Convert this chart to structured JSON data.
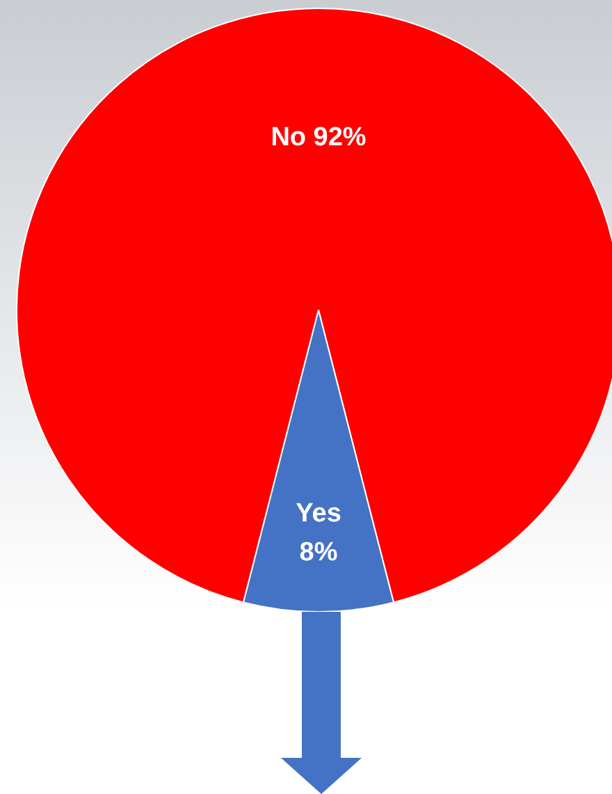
{
  "chart_data": {
    "type": "pie",
    "categories": [
      "No",
      "Yes"
    ],
    "values": [
      92,
      8
    ],
    "colors": [
      "#ff0000",
      "#4472c4"
    ],
    "value_labels": [
      "92%",
      "8%"
    ],
    "legend": false
  }
}
